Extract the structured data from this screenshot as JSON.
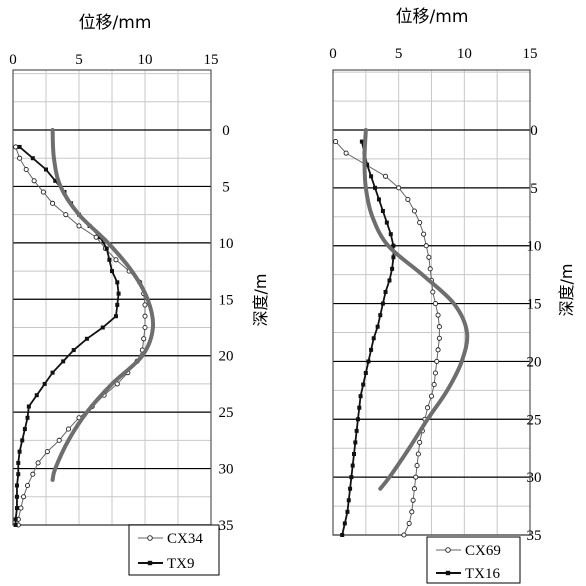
{
  "chart_data": [
    {
      "type": "line",
      "title": "",
      "xlabel": "位移/mm",
      "ylabel": "深度/m",
      "xlim": [
        0,
        15
      ],
      "ylim": [
        0,
        35
      ],
      "x_ticks": [
        "0",
        "5",
        "10",
        "15"
      ],
      "y_ticks": [
        "0",
        "5",
        "10",
        "15",
        "20",
        "25",
        "30",
        "35"
      ],
      "legend_position": "bottom-right",
      "series": [
        {
          "name": "CX34",
          "marker": "open-circle",
          "depth": [
            1.5,
            2.5,
            3.5,
            4.5,
            5.5,
            6.5,
            7.5,
            8.5,
            9.5,
            10.5,
            11.5,
            12.5,
            13.5,
            14.5,
            15.5,
            16.5,
            17.5,
            18.5,
            19.5,
            20.5,
            21.5,
            22.5,
            23.5,
            24.5,
            25.5,
            26.5,
            27.5,
            28.5,
            29.5,
            30.5,
            31.5,
            32.5,
            33.5,
            34.5,
            35.0
          ],
          "displacement": [
            0.2,
            0.5,
            1.0,
            1.6,
            2.3,
            3.0,
            4.0,
            5.0,
            6.3,
            7.0,
            7.8,
            8.8,
            9.6,
            9.9,
            10.0,
            10.0,
            10.0,
            9.9,
            9.8,
            9.4,
            8.7,
            7.9,
            6.9,
            6.0,
            5.0,
            4.2,
            3.5,
            2.6,
            1.9,
            1.5,
            1.1,
            0.8,
            0.6,
            0.4,
            0.4
          ]
        },
        {
          "name": "TX9",
          "marker": "filled-square",
          "depth": [
            1.5,
            2.5,
            3.5,
            4.5,
            5.5,
            6.5,
            7.5,
            8.5,
            9.5,
            10.5,
            11.5,
            12.5,
            13.5,
            14.5,
            15.5,
            16.5,
            17.5,
            18.5,
            19.5,
            20.5,
            21.5,
            22.5,
            23.5,
            24.5,
            25.5,
            26.5,
            27.5,
            28.5,
            29.5,
            30.5,
            31.5,
            32.5,
            33.5,
            34.5,
            35.0
          ],
          "displacement": [
            0.5,
            1.5,
            2.5,
            3.2,
            3.9,
            4.4,
            5.0,
            5.8,
            6.6,
            7.1,
            7.3,
            7.5,
            7.9,
            8.0,
            7.9,
            7.8,
            6.8,
            5.6,
            4.6,
            3.8,
            3.0,
            2.4,
            1.8,
            1.2,
            1.1,
            0.9,
            0.7,
            0.5,
            0.4,
            0.4,
            0.3,
            0.3,
            0.3,
            0.2,
            0.2
          ]
        },
        {
          "name": "",
          "style": "thick-gray-curve",
          "depth": [
            0,
            2.5,
            5.0,
            7.5,
            10.0,
            12.5,
            15.0,
            17.5,
            20.0,
            22.5,
            25.0,
            27.5,
            30.0,
            31.0
          ],
          "displacement": [
            3.0,
            3.1,
            3.6,
            5.0,
            7.2,
            9.0,
            10.2,
            10.6,
            9.8,
            7.5,
            5.6,
            4.2,
            3.2,
            3.0
          ]
        }
      ]
    },
    {
      "type": "line",
      "title": "",
      "xlabel": "位移/mm",
      "ylabel": "深度/m",
      "xlim": [
        0,
        15
      ],
      "ylim": [
        0,
        35
      ],
      "x_ticks": [
        "0",
        "5",
        "10",
        "15"
      ],
      "y_ticks": [
        "0",
        "5",
        "10",
        "15",
        "20",
        "25",
        "30",
        "35"
      ],
      "legend_position": "bottom-right",
      "series": [
        {
          "name": "CX69",
          "marker": "open-circle",
          "depth": [
            1.0,
            2.0,
            3.0,
            4.0,
            5.0,
            6.0,
            7.0,
            8.0,
            9.0,
            10.0,
            11.0,
            12.0,
            13.0,
            14.0,
            15.0,
            16.0,
            17.0,
            18.0,
            19.0,
            20.0,
            21.0,
            22.0,
            23.0,
            24.0,
            25.0,
            26.0,
            27.0,
            28.0,
            29.0,
            30.0,
            31.0,
            32.0,
            33.0,
            34.0,
            35.0
          ],
          "displacement": [
            0.2,
            1.0,
            2.5,
            4.0,
            5.0,
            5.7,
            6.2,
            6.6,
            6.9,
            7.1,
            7.3,
            7.4,
            7.5,
            7.6,
            7.8,
            8.0,
            8.1,
            8.1,
            8.0,
            7.9,
            7.8,
            7.7,
            7.5,
            7.2,
            7.0,
            6.8,
            6.6,
            6.5,
            6.4,
            6.3,
            6.2,
            6.1,
            6.0,
            5.8,
            5.4
          ]
        },
        {
          "name": "TX16",
          "marker": "filled-square",
          "depth": [
            1.0,
            2.0,
            3.0,
            4.0,
            5.0,
            6.0,
            7.0,
            8.0,
            9.0,
            10.0,
            11.0,
            12.0,
            13.0,
            14.0,
            15.0,
            16.0,
            17.0,
            18.0,
            19.0,
            20.0,
            21.0,
            22.0,
            23.0,
            24.0,
            25.0,
            26.0,
            27.0,
            28.0,
            29.0,
            30.0,
            31.0,
            32.0,
            33.0,
            34.0,
            35.0
          ],
          "displacement": [
            2.2,
            2.4,
            2.6,
            2.9,
            3.2,
            3.5,
            3.8,
            4.1,
            4.4,
            4.6,
            4.6,
            4.5,
            4.3,
            4.0,
            3.8,
            3.6,
            3.4,
            3.1,
            2.9,
            2.7,
            2.5,
            2.3,
            2.1,
            2.0,
            1.9,
            1.8,
            1.7,
            1.6,
            1.5,
            1.4,
            1.3,
            1.2,
            1.1,
            0.9,
            0.7
          ]
        },
        {
          "name": "",
          "style": "thick-gray-curve",
          "depth": [
            0,
            2.5,
            5.0,
            7.5,
            10.0,
            12.5,
            15.0,
            17.5,
            20.0,
            22.5,
            25.0,
            27.5,
            30.0,
            31.0
          ],
          "displacement": [
            2.5,
            2.4,
            2.5,
            3.0,
            4.2,
            6.8,
            9.2,
            10.2,
            9.8,
            8.7,
            7.2,
            5.8,
            4.3,
            3.6
          ]
        }
      ]
    }
  ]
}
